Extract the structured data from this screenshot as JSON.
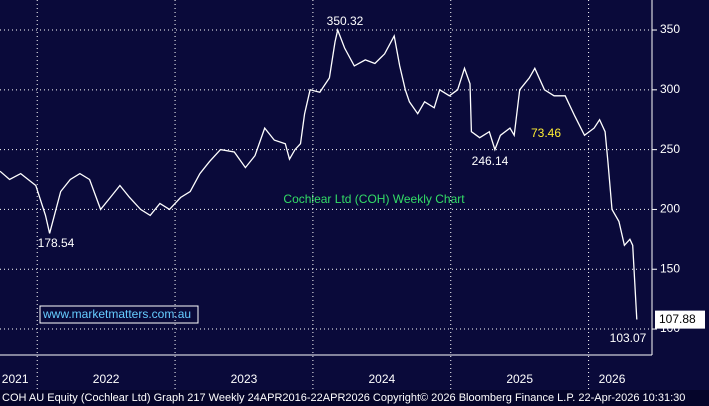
{
  "chart_data": {
    "type": "line",
    "title": "Cochlear Ltd (COH) Weekly Chart",
    "footer": "COH AU Equity (Cochlear Ltd) Graph 217 Weekly 24APR2016-22APR2026 Copyright© 2026 Bloomberg Finance L.P. 22-Apr-2026 10:31:30",
    "watermark": "www.marketmatters.com.au",
    "annotations": [
      "350.32",
      "178.54",
      "246.14",
      "73.46",
      "103.07"
    ],
    "last_price": 107.88,
    "x": [
      2021.73,
      2021.8,
      2021.88,
      2021.99,
      2022.06,
      2022.09,
      2022.17,
      2022.24,
      2022.31,
      2022.38,
      2022.46,
      2022.53,
      2022.6,
      2022.67,
      2022.75,
      2022.82,
      2022.89,
      2022.96,
      2023.04,
      2023.11,
      2023.18,
      2023.25,
      2023.33,
      2023.43,
      2023.51,
      2023.58,
      2023.65,
      2023.72,
      2023.8,
      2023.83,
      2023.87,
      2023.91,
      2023.94,
      2023.98,
      2024.05,
      2024.12,
      2024.16,
      2024.18,
      2024.23,
      2024.3,
      2024.38,
      2024.45,
      2024.52,
      2024.59,
      2024.63,
      2024.67,
      2024.7,
      2024.76,
      2024.81,
      2024.88,
      2024.92,
      2024.99,
      2025.05,
      2025.1,
      2025.14,
      2025.15,
      2025.21,
      2025.28,
      2025.32,
      2025.36,
      2025.43,
      2025.46,
      2025.5,
      2025.57,
      2025.61,
      2025.68,
      2025.75,
      2025.83,
      2025.9,
      2025.97,
      2026.04,
      2026.08,
      2026.12,
      2026.14,
      2026.17,
      2026.22,
      2026.26,
      2026.3,
      2026.32,
      2026.35
    ],
    "series": [
      {
        "name": "COH",
        "color": "#ffffff",
        "values": [
          232,
          225,
          230,
          220,
          195,
          180,
          215,
          225,
          230,
          225,
          200,
          210,
          220,
          210,
          200,
          195,
          205,
          200,
          210,
          215,
          230,
          240,
          250,
          248,
          235,
          245,
          268,
          258,
          255,
          242,
          250,
          255,
          280,
          300,
          298,
          310,
          340,
          350,
          335,
          320,
          325,
          322,
          330,
          345,
          320,
          300,
          290,
          280,
          290,
          285,
          300,
          295,
          300,
          318,
          305,
          265,
          260,
          265,
          250,
          262,
          268,
          262,
          300,
          310,
          318,
          300,
          295,
          295,
          278,
          262,
          268,
          275,
          265,
          240,
          200,
          190,
          170,
          175,
          170,
          108
        ]
      }
    ],
    "xlim": [
      2021.73,
      2026.46
    ],
    "xticks": [
      {
        "value": 2021.84,
        "label": "2021"
      },
      {
        "value": 2022.5,
        "label": "2022"
      },
      {
        "value": 2023.5,
        "label": "2023"
      },
      {
        "value": 2024.5,
        "label": "2024"
      },
      {
        "value": 2025.5,
        "label": "2025"
      },
      {
        "value": 2026.17,
        "label": "2026"
      }
    ],
    "xgrid": [
      2022,
      2023,
      2024,
      2025,
      2026
    ],
    "ylim": [
      78.3,
      375.1
    ],
    "yticks": [
      100,
      150,
      200,
      250,
      300,
      350
    ],
    "grid": true
  }
}
